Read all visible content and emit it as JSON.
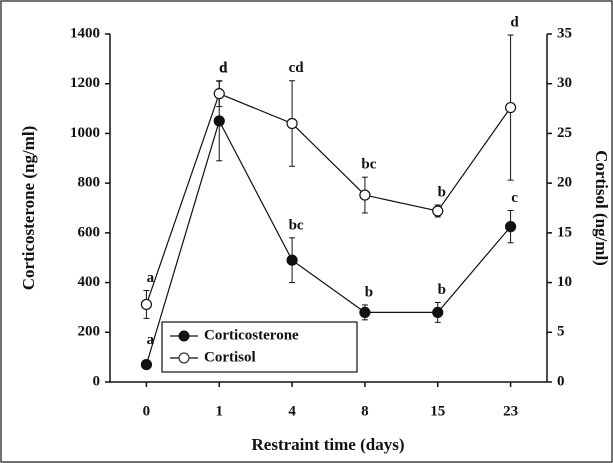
{
  "chart_data": {
    "type": "line",
    "categories": [
      "0",
      "1",
      "4",
      "8",
      "15",
      "23"
    ],
    "xlabel": "Restraint time (days)",
    "ylabel": "Corticosterone (ng/ml)",
    "y2label": "Cortisol (ng/ml)",
    "ylim": [
      0,
      1400
    ],
    "yticks": [
      0,
      200,
      400,
      600,
      800,
      1000,
      1200,
      1400
    ],
    "y2lim": [
      0,
      35
    ],
    "y2ticks": [
      0,
      5,
      10,
      15,
      20,
      25,
      30,
      35
    ],
    "legend": "lower left",
    "series": [
      {
        "name": "Corticosterone",
        "color": "#111111",
        "marker": "filled",
        "values": [
          70,
          1050,
          490,
          280,
          280,
          625
        ],
        "errors": [
          10,
          160,
          90,
          30,
          40,
          65
        ],
        "letters": [
          "a",
          "d",
          "bc",
          "b",
          "b",
          "c"
        ]
      },
      {
        "name": "Cortisol",
        "color": "#111111",
        "marker": "open",
        "axis": "y2",
        "values": [
          7.8,
          29.0,
          26.0,
          18.8,
          17.2,
          27.6
        ],
        "errors": [
          1.4,
          1.3,
          4.3,
          1.8,
          0.6,
          7.3
        ],
        "letters": [
          "a",
          "d",
          "cd",
          "bc",
          "b",
          "d"
        ]
      }
    ]
  }
}
